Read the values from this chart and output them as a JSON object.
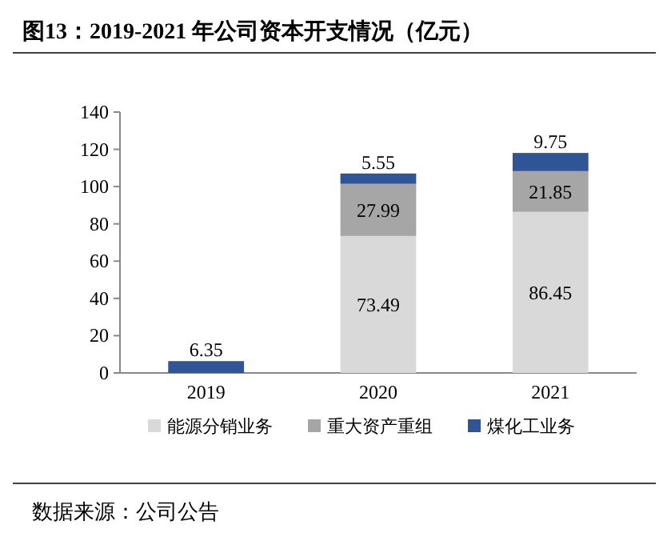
{
  "chart_data": {
    "type": "bar",
    "title": "图13：2019-2021 年公司资本开支情况（亿元）",
    "stacked": true,
    "data_labels": true,
    "legend": "bottom",
    "categories": [
      "2019",
      "2020",
      "2021"
    ],
    "series": [
      {
        "name": "能源分销业务",
        "color": "#d9d9d9",
        "values": [
          null,
          73.49,
          86.45
        ]
      },
      {
        "name": "重大资产重组",
        "color": "#a6a6a6",
        "values": [
          null,
          27.99,
          21.85
        ]
      },
      {
        "name": "煤化工业务",
        "color": "#2f5597",
        "values": [
          6.35,
          5.55,
          9.75
        ]
      }
    ],
    "ylim": [
      0,
      140
    ],
    "yticks": [
      0,
      20,
      40,
      60,
      80,
      100,
      120,
      140
    ],
    "annotations": [
      "数据来源：公司公告"
    ]
  }
}
